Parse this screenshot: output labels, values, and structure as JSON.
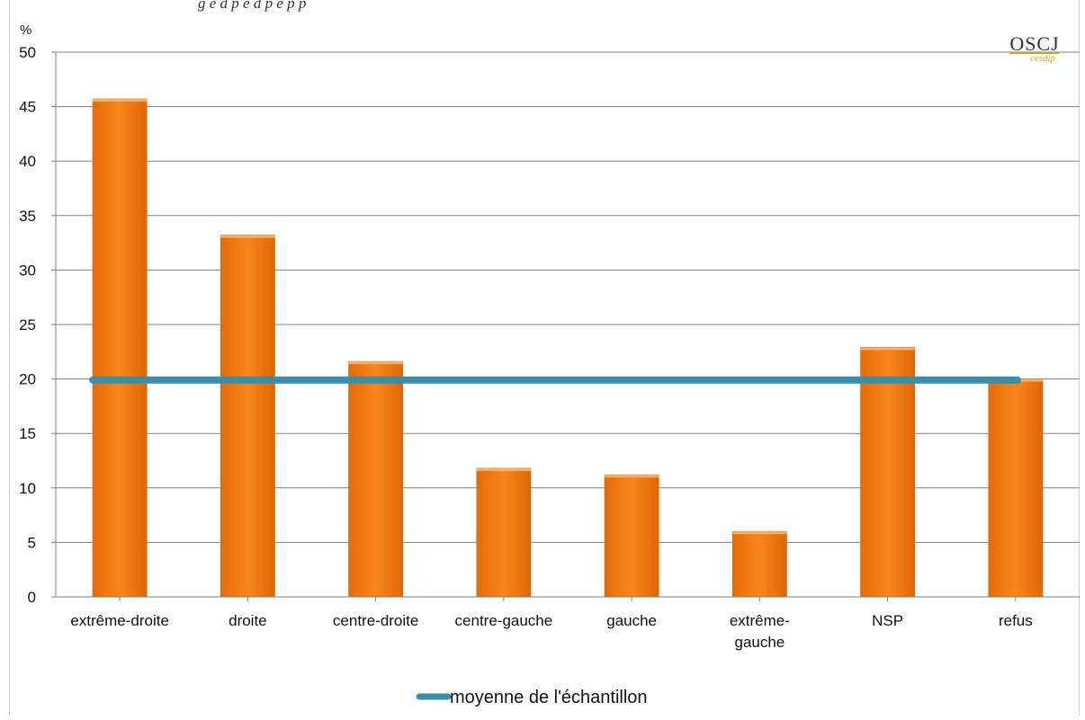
{
  "caption": "g e  d   p     e  d         p   e   p  p",
  "logo": {
    "main": "OSCJ",
    "sub": "cesdip"
  },
  "chart_data": {
    "type": "bar",
    "title": "",
    "ylabel": "%",
    "xlabel": "",
    "ylim": [
      0,
      50
    ],
    "yticks": [
      0,
      5,
      10,
      15,
      20,
      25,
      30,
      35,
      40,
      45,
      50
    ],
    "grid": true,
    "legend_position": "bottom",
    "categories": [
      "extrême-droite",
      "droite",
      "centre-droite",
      "centre-gauche",
      "gauche",
      "extrême-gauche",
      "NSP",
      "refus"
    ],
    "category_lines": [
      [
        "extrême-droite"
      ],
      [
        "droite"
      ],
      [
        "centre-droite"
      ],
      [
        "centre-gauche"
      ],
      [
        "gauche"
      ],
      [
        "extrême-",
        "gauche"
      ],
      [
        "NSP"
      ],
      [
        "refus"
      ]
    ],
    "values": [
      45.7,
      33.2,
      21.6,
      11.8,
      11.2,
      6.0,
      22.9,
      20.0
    ],
    "reference_line": {
      "name": "moyenne de l'échantillon",
      "value": 19.9
    },
    "colors": {
      "bar": "#f07810",
      "bar_edge": "#d86808",
      "reference": "#3a8ea8",
      "grid": "#808080"
    }
  }
}
